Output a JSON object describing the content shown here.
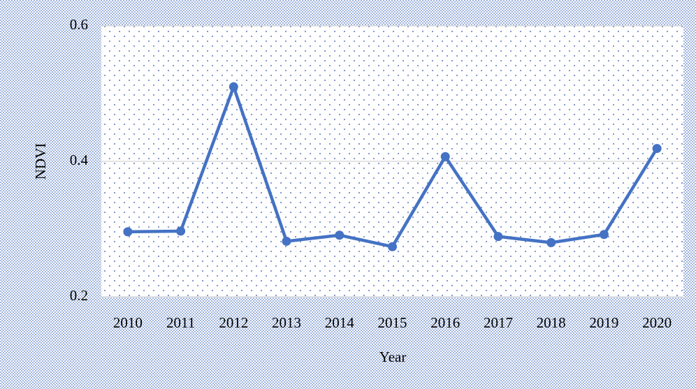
{
  "chart_data": {
    "type": "line",
    "x_label": "Year",
    "y_label": "NDVI",
    "categories": [
      "2010",
      "2011",
      "2012",
      "2013",
      "2014",
      "2015",
      "2016",
      "2017",
      "2018",
      "2019",
      "2020"
    ],
    "series": [
      {
        "name": "NDVI",
        "color": "#4472c4",
        "values": [
          0.296,
          0.297,
          0.51,
          0.282,
          0.291,
          0.274,
          0.407,
          0.289,
          0.28,
          0.292,
          0.419
        ]
      }
    ],
    "ylim": [
      0.2,
      0.6
    ],
    "yticks": [
      0.2,
      0.4,
      0.6
    ],
    "grid": true,
    "legend": false
  }
}
